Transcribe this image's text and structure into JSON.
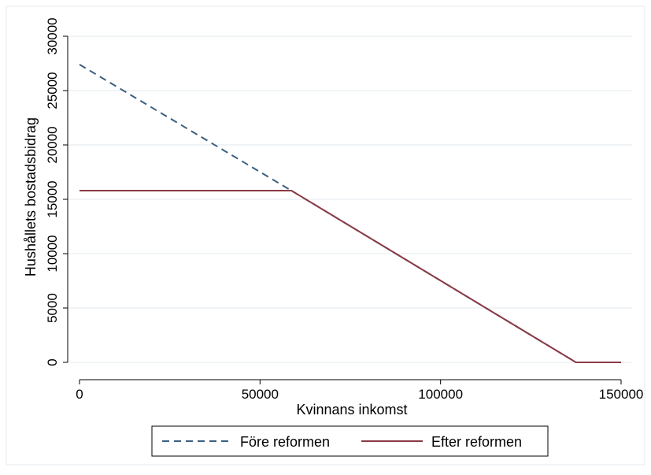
{
  "chart_data": {
    "type": "line",
    "title": "",
    "xlabel": "Kvinnans inkomst",
    "ylabel": "Hushållets bostadsbidrag",
    "xlim": [
      0,
      150000
    ],
    "ylim": [
      0,
      30000
    ],
    "x_ticks": [
      0,
      50000,
      100000,
      150000
    ],
    "x_tick_labels": [
      "0",
      "50000",
      "100000",
      "150000"
    ],
    "y_ticks": [
      0,
      5000,
      10000,
      15000,
      20000,
      25000,
      30000
    ],
    "y_tick_labels": [
      "0",
      "5000",
      "10000",
      "15000",
      "20000",
      "25000",
      "30000"
    ],
    "grid": true,
    "legend_position": "bottom",
    "series": [
      {
        "name": "Före reformen",
        "color": "#3b5f7f",
        "line_style": "dashed",
        "x": [
          0,
          58700,
          137500,
          150000
        ],
        "y": [
          27400,
          15800,
          0,
          0
        ]
      },
      {
        "name": "Efter reformen",
        "color": "#8b3a46",
        "line_style": "solid",
        "x": [
          0,
          58700,
          137500,
          150000
        ],
        "y": [
          15800,
          15800,
          0,
          0
        ]
      }
    ]
  }
}
